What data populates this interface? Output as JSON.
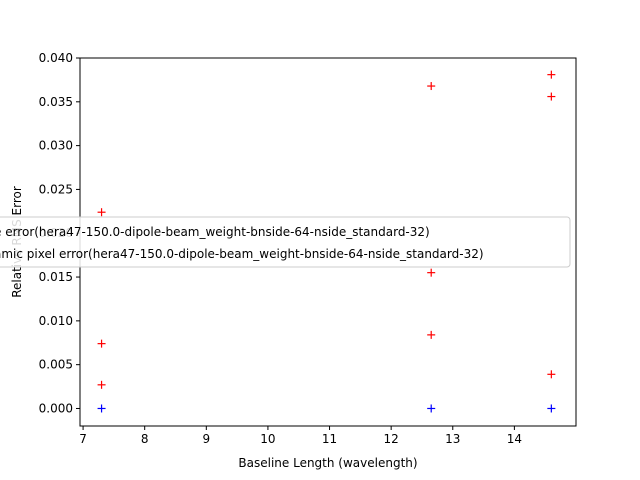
{
  "chart_data": {
    "type": "scatter",
    "xlabel": "Baseline Length (wavelength)",
    "ylabel": "Relative RMS Error",
    "xlim": [
      6.95,
      15.0
    ],
    "ylim": [
      -0.002,
      0.04
    ],
    "xticks": [
      7,
      8,
      9,
      10,
      11,
      12,
      13,
      14
    ],
    "yticks": [
      0.0,
      0.005,
      0.01,
      0.015,
      0.02,
      0.025,
      0.03,
      0.035,
      0.04
    ],
    "ytick_labels": [
      "0.000",
      "0.005",
      "0.010",
      "0.015",
      "0.020",
      "0.025",
      "0.030",
      "0.035",
      "0.040"
    ],
    "legend_position": "center-left",
    "series": [
      {
        "name": "e error(hera47-150.0-dipole-beam_weight-bnside-64-nside_standard-32)",
        "color": "#ff0000",
        "marker": "+",
        "points": [
          [
            7.3,
            0.0224
          ],
          [
            7.3,
            0.0074
          ],
          [
            7.3,
            0.0027
          ],
          [
            12.65,
            0.0368
          ],
          [
            12.65,
            0.0155
          ],
          [
            12.65,
            0.0084
          ],
          [
            14.6,
            0.0381
          ],
          [
            14.6,
            0.0356
          ],
          [
            14.6,
            0.0039
          ]
        ]
      },
      {
        "name": "amic pixel error(hera47-150.0-dipole-beam_weight-bnside-64-nside_standard-32)",
        "color": "#0000ff",
        "marker": "+",
        "points": [
          [
            7.3,
            0.0
          ],
          [
            12.65,
            0.0
          ],
          [
            14.6,
            0.0
          ]
        ]
      }
    ]
  }
}
